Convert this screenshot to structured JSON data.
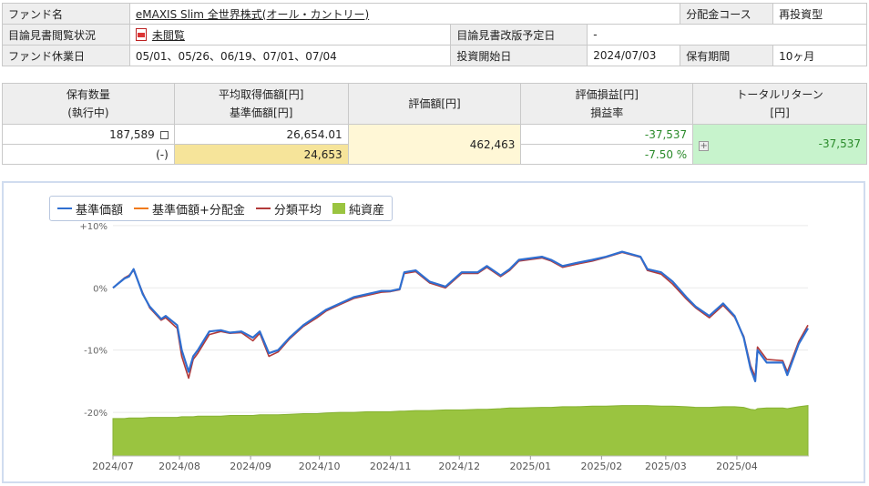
{
  "fund_info": {
    "fund_name_label": "ファンド名",
    "fund_name": "eMAXIS Slim 全世界株式(オール・カントリー)",
    "distribution_course_label": "分配金コース",
    "distribution_course": "再投資型",
    "prospectus_status_label": "目論見書閲覧状況",
    "prospectus_status": "未閲覧",
    "prospectus_revision_label": "目論見書改版予定日",
    "prospectus_revision": "-",
    "holidays_label": "ファンド休業日",
    "holidays": "05/01、05/26、06/19、07/01、07/04",
    "start_date_label": "投資開始日",
    "start_date": "2024/07/03",
    "holding_period_label": "保有期間",
    "holding_period": "10ヶ月"
  },
  "holdings": {
    "col_qty": "保有数量",
    "col_qty_sub": "(執行中)",
    "col_avg": "平均取得価額[円]",
    "col_avg_sub": "基準価額[円]",
    "col_value": "評価額[円]",
    "col_pl": "評価損益[円]",
    "col_pl_sub": "損益率",
    "col_total": "トータルリターン",
    "col_total_sub": "[円]",
    "qty": "187,589",
    "qty_pending": "(-)",
    "avg_price": "26,654.01",
    "nav": "24,653",
    "value": "462,463",
    "pl": "-37,537",
    "pl_rate": "-7.50 %",
    "total_return": "-37,537"
  },
  "colors": {
    "nav": "#2f6fd1",
    "nav_div": "#f07a1a",
    "category_avg": "#b23a3a",
    "net_assets": "#9ac440",
    "negative": "#2a8a2a"
  },
  "chart_data": {
    "type": "line",
    "legend": [
      "基準価額",
      "基準価額+分配金",
      "分類平均",
      "純資産"
    ],
    "y_ticks": [
      "+10%",
      "0%",
      "-10%",
      "-20%"
    ],
    "ylim": [
      -27,
      11
    ],
    "x_ticks": [
      "2024/07",
      "2024/08",
      "2024/09",
      "2024/10",
      "2024/11",
      "2024/12",
      "2025/01",
      "2025/02",
      "2025/03",
      "2025/04"
    ],
    "x": [
      "2024/07/03",
      "2024/07/08",
      "2024/07/10",
      "2024/07/12",
      "2024/07/16",
      "2024/07/19",
      "2024/07/24",
      "2024/07/26",
      "2024/07/31",
      "2024/08/02",
      "2024/08/05",
      "2024/08/07",
      "2024/08/09",
      "2024/08/14",
      "2024/08/19",
      "2024/08/23",
      "2024/08/28",
      "2024/09/02",
      "2024/09/05",
      "2024/09/09",
      "2024/09/13",
      "2024/09/18",
      "2024/09/24",
      "2024/09/30",
      "2024/10/04",
      "2024/10/10",
      "2024/10/16",
      "2024/10/22",
      "2024/10/28",
      "2024/11/01",
      "2024/11/05",
      "2024/11/07",
      "2024/11/12",
      "2024/11/18",
      "2024/11/25",
      "2024/12/02",
      "2024/12/09",
      "2024/12/13",
      "2024/12/19",
      "2024/12/23",
      "2024/12/27",
      "2025/01/06",
      "2025/01/10",
      "2025/01/15",
      "2025/01/21",
      "2025/01/28",
      "2025/02/03",
      "2025/02/10",
      "2025/02/18",
      "2025/02/21",
      "2025/02/27",
      "2025/03/04",
      "2025/03/10",
      "2025/03/14",
      "2025/03/20",
      "2025/03/26",
      "2025/03/31",
      "2025/04/04",
      "2025/04/07",
      "2025/04/09",
      "2025/04/10",
      "2025/04/14",
      "2025/04/21",
      "2025/04/23",
      "2025/04/28",
      "2025/05/02"
    ],
    "series": [
      {
        "name": "基準価額",
        "values": [
          0,
          1.5,
          1.8,
          3,
          -1,
          -3,
          -5,
          -4.5,
          -6,
          -10,
          -13.5,
          -11,
          -10,
          -7,
          -6.8,
          -7.2,
          -7,
          -8,
          -7,
          -10.5,
          -10,
          -8,
          -6,
          -4.5,
          -3.5,
          -2.5,
          -1.5,
          -1,
          -0.5,
          -0.5,
          -0.2,
          2.5,
          2.8,
          1,
          0.2,
          2.5,
          2.5,
          3.5,
          2,
          3,
          4.5,
          5,
          4.5,
          3.5,
          4,
          4.5,
          5,
          5.8,
          5,
          3,
          2.5,
          1,
          -1.5,
          -3,
          -4.5,
          -2.5,
          -4.5,
          -8,
          -13,
          -15,
          -10,
          -12,
          -12,
          -14,
          -9,
          -6.5
        ]
      },
      {
        "name": "基準価額+分配金",
        "values": [
          0,
          1.5,
          1.8,
          3,
          -1,
          -3,
          -5,
          -4.5,
          -6,
          -10,
          -13.5,
          -11,
          -10,
          -7,
          -6.8,
          -7.2,
          -7,
          -8,
          -7,
          -10.5,
          -10,
          -8,
          -6,
          -4.5,
          -3.5,
          -2.5,
          -1.5,
          -1,
          -0.5,
          -0.5,
          -0.2,
          2.5,
          2.8,
          1,
          0.2,
          2.5,
          2.5,
          3.5,
          2,
          3,
          4.5,
          5,
          4.5,
          3.5,
          4,
          4.5,
          5,
          5.8,
          5,
          3,
          2.5,
          1,
          -1.5,
          -3,
          -4.5,
          -2.5,
          -4.5,
          -8,
          -13,
          -15,
          -10,
          -12,
          -12,
          -14,
          -9,
          -6.5
        ]
      },
      {
        "name": "分類平均",
        "values": [
          0,
          1.6,
          2,
          2.8,
          -0.8,
          -3.2,
          -5.2,
          -4.8,
          -6.5,
          -11,
          -14.5,
          -11.5,
          -10.5,
          -7.5,
          -7,
          -7.3,
          -7.2,
          -8.5,
          -7.3,
          -11,
          -10.3,
          -8.2,
          -6.2,
          -4.8,
          -3.7,
          -2.7,
          -1.7,
          -1.2,
          -0.7,
          -0.6,
          -0.3,
          2.3,
          2.6,
          0.8,
          0,
          2.3,
          2.3,
          3.3,
          1.8,
          2.8,
          4.3,
          4.8,
          4.3,
          3.3,
          3.8,
          4.3,
          4.9,
          5.7,
          4.9,
          2.8,
          2.2,
          0.6,
          -1.8,
          -3.2,
          -4.8,
          -2.8,
          -4.7,
          -7.8,
          -12.5,
          -14.3,
          -9.5,
          -11.5,
          -11.7,
          -13.5,
          -8.6,
          -6
        ]
      },
      {
        "name": "純資産",
        "values": [
          -21,
          -21,
          -20.9,
          -20.9,
          -20.9,
          -20.8,
          -20.8,
          -20.8,
          -20.8,
          -20.7,
          -20.7,
          -20.7,
          -20.6,
          -20.6,
          -20.6,
          -20.5,
          -20.5,
          -20.5,
          -20.4,
          -20.4,
          -20.4,
          -20.3,
          -20.2,
          -20.2,
          -20.1,
          -20,
          -20,
          -19.9,
          -19.9,
          -19.9,
          -19.8,
          -19.8,
          -19.7,
          -19.7,
          -19.6,
          -19.6,
          -19.5,
          -19.5,
          -19.4,
          -19.3,
          -19.3,
          -19.2,
          -19.2,
          -19.1,
          -19.1,
          -19,
          -19,
          -18.9,
          -18.9,
          -18.9,
          -19,
          -19,
          -19.1,
          -19.2,
          -19.2,
          -19.1,
          -19.1,
          -19.2,
          -19.5,
          -19.6,
          -19.4,
          -19.3,
          -19.3,
          -19.4,
          -19.1,
          -18.9
        ]
      }
    ]
  }
}
